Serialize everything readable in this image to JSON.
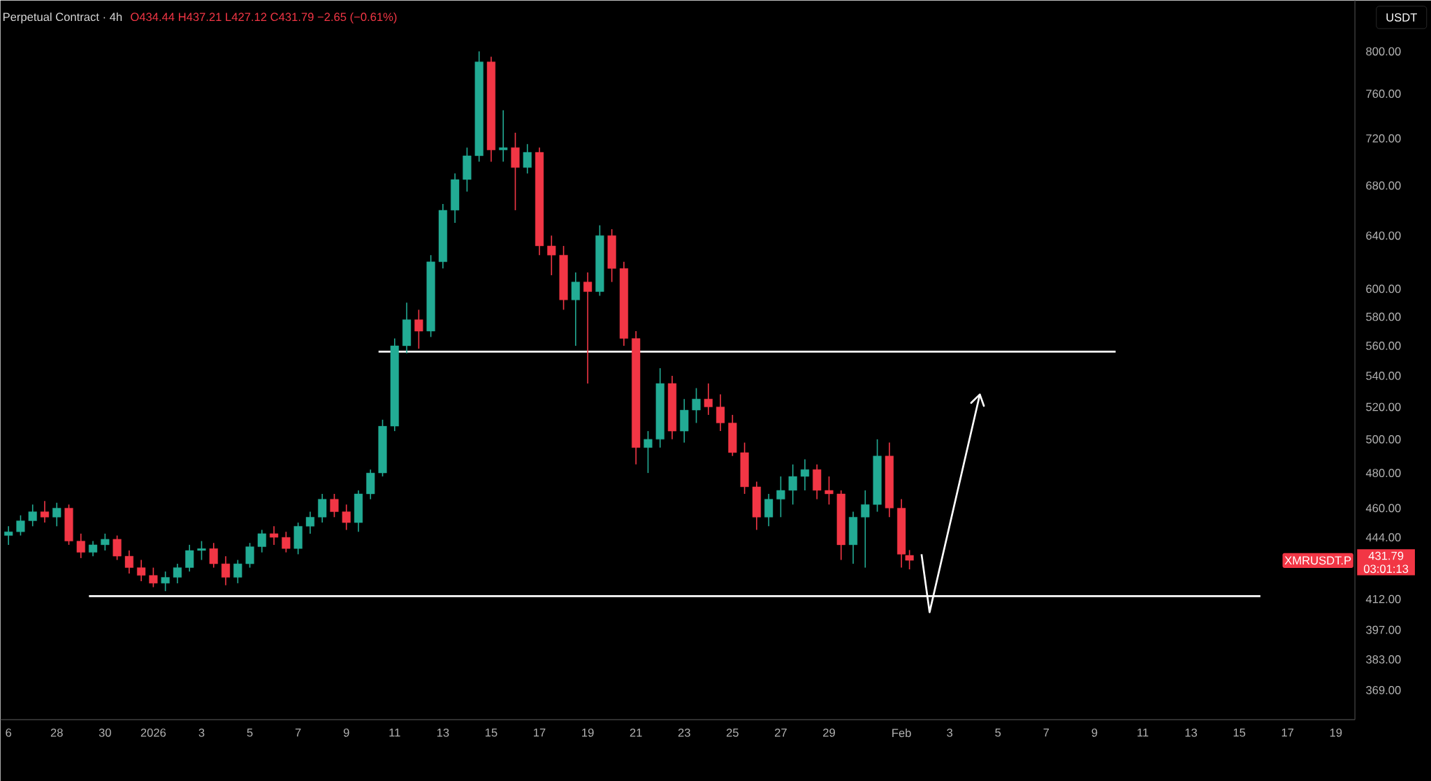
{
  "chart_data": {
    "type": "candlestick",
    "title": "Perpetual Contract · 4h",
    "subtitle": "O434.44 H437.21 L427.12 C431.79 −2.65 (−0.61%)",
    "annotations": [
      "USDT",
      "XMRUSDT.P",
      "431.79",
      "03:01:13"
    ],
    "log": "y",
    "grid": false,
    "xlim": [
      "2025-12-25T16:00",
      "2026-02-19T19:00"
    ],
    "ylim": [
      356,
      851
    ],
    "xticks": [
      {
        "value": "2025-12-26",
        "label": "6"
      },
      {
        "value": "2025-12-28",
        "label": "28"
      },
      {
        "value": "2025-12-30",
        "label": "30"
      },
      {
        "value": "2026-01-01",
        "label": "2026"
      },
      {
        "value": "2026-01-03",
        "label": "3"
      },
      {
        "value": "2026-01-05",
        "label": "5"
      },
      {
        "value": "2026-01-07",
        "label": "7"
      },
      {
        "value": "2026-01-09",
        "label": "9"
      },
      {
        "value": "2026-01-11",
        "label": "11"
      },
      {
        "value": "2026-01-13",
        "label": "13"
      },
      {
        "value": "2026-01-15",
        "label": "15"
      },
      {
        "value": "2026-01-17",
        "label": "17"
      },
      {
        "value": "2026-01-19",
        "label": "19"
      },
      {
        "value": "2026-01-21",
        "label": "21"
      },
      {
        "value": "2026-01-23",
        "label": "23"
      },
      {
        "value": "2026-01-25",
        "label": "25"
      },
      {
        "value": "2026-01-27",
        "label": "27"
      },
      {
        "value": "2026-01-29",
        "label": "29"
      },
      {
        "value": "2026-02-01",
        "label": "Feb"
      },
      {
        "value": "2026-02-03",
        "label": "3"
      },
      {
        "value": "2026-02-05",
        "label": "5"
      },
      {
        "value": "2026-02-07",
        "label": "7"
      },
      {
        "value": "2026-02-09",
        "label": "9"
      },
      {
        "value": "2026-02-11",
        "label": "11"
      },
      {
        "value": "2026-02-13",
        "label": "13"
      },
      {
        "value": "2026-02-15",
        "label": "15"
      },
      {
        "value": "2026-02-17",
        "label": "17"
      },
      {
        "value": "2026-02-19",
        "label": "19"
      }
    ],
    "yticks": [
      {
        "value": 369,
        "label": "369.00"
      },
      {
        "value": 383,
        "label": "383.00"
      },
      {
        "value": 397,
        "label": "397.00"
      },
      {
        "value": 412,
        "label": "412.00"
      },
      {
        "value": 444,
        "label": "444.00"
      },
      {
        "value": 460,
        "label": "460.00"
      },
      {
        "value": 480,
        "label": "480.00"
      },
      {
        "value": 500,
        "label": "500.00"
      },
      {
        "value": 520,
        "label": "520.00"
      },
      {
        "value": 540,
        "label": "540.00"
      },
      {
        "value": 560,
        "label": "560.00"
      },
      {
        "value": 580,
        "label": "580.00"
      },
      {
        "value": 600,
        "label": "600.00"
      },
      {
        "value": 640,
        "label": "640.00"
      },
      {
        "value": 680,
        "label": "680.00"
      },
      {
        "value": 720,
        "label": "720.00"
      },
      {
        "value": 760,
        "label": "760.00"
      },
      {
        "value": 800,
        "label": "800.00"
      }
    ],
    "x": [
      "2025-12-26T00:00",
      "2025-12-26T12:00",
      "2025-12-27T00:00",
      "2025-12-27T12:00",
      "2025-12-28T00:00",
      "2025-12-28T12:00",
      "2025-12-29T00:00",
      "2025-12-29T12:00",
      "2025-12-30T00:00",
      "2025-12-30T12:00",
      "2025-12-31T00:00",
      "2025-12-31T12:00",
      "2026-01-01T00:00",
      "2026-01-01T12:00",
      "2026-01-02T00:00",
      "2026-01-02T12:00",
      "2026-01-03T00:00",
      "2026-01-03T12:00",
      "2026-01-04T00:00",
      "2026-01-04T12:00",
      "2026-01-05T00:00",
      "2026-01-05T12:00",
      "2026-01-06T00:00",
      "2026-01-06T12:00",
      "2026-01-07T00:00",
      "2026-01-07T12:00",
      "2026-01-08T00:00",
      "2026-01-08T12:00",
      "2026-01-09T00:00",
      "2026-01-09T12:00",
      "2026-01-10T00:00",
      "2026-01-10T12:00",
      "2026-01-11T00:00",
      "2026-01-11T12:00",
      "2026-01-12T00:00",
      "2026-01-12T12:00",
      "2026-01-13T00:00",
      "2026-01-13T12:00",
      "2026-01-14T00:00",
      "2026-01-14T12:00",
      "2026-01-15T00:00",
      "2026-01-15T12:00",
      "2026-01-16T00:00",
      "2026-01-16T12:00",
      "2026-01-17T00:00",
      "2026-01-17T12:00",
      "2026-01-18T00:00",
      "2026-01-18T12:00",
      "2026-01-19T00:00",
      "2026-01-19T12:00",
      "2026-01-20T00:00",
      "2026-01-20T12:00",
      "2026-01-21T00:00",
      "2026-01-21T12:00",
      "2026-01-22T00:00",
      "2026-01-22T12:00",
      "2026-01-23T00:00",
      "2026-01-23T12:00",
      "2026-01-24T00:00",
      "2026-01-24T12:00",
      "2026-01-25T00:00",
      "2026-01-25T12:00",
      "2026-01-26T00:00",
      "2026-01-26T12:00",
      "2026-01-27T00:00",
      "2026-01-27T12:00",
      "2026-01-28T00:00",
      "2026-01-28T12:00",
      "2026-01-29T00:00",
      "2026-01-29T12:00",
      "2026-01-30T00:00",
      "2026-01-30T12:00",
      "2026-01-31T00:00",
      "2026-01-31T12:00",
      "2026-02-01T00:00",
      "2026-02-01T08:00"
    ],
    "ohlc": [
      [
        445,
        450,
        440,
        447
      ],
      [
        447,
        456,
        445,
        453
      ],
      [
        453,
        462,
        450,
        458
      ],
      [
        458,
        464,
        452,
        455
      ],
      [
        455,
        463,
        450,
        460
      ],
      [
        460,
        462,
        440,
        442
      ],
      [
        442,
        446,
        433,
        436
      ],
      [
        436,
        442,
        434,
        440
      ],
      [
        440,
        446,
        437,
        443
      ],
      [
        443,
        445,
        432,
        434
      ],
      [
        434,
        437,
        425,
        428
      ],
      [
        428,
        432,
        421,
        424
      ],
      [
        424,
        428,
        418,
        420
      ],
      [
        420,
        426,
        416,
        423
      ],
      [
        423,
        430,
        420,
        428
      ],
      [
        428,
        440,
        426,
        437
      ],
      [
        437,
        442,
        432,
        438
      ],
      [
        438,
        441,
        428,
        430
      ],
      [
        430,
        434,
        419,
        423
      ],
      [
        423,
        432,
        420,
        430
      ],
      [
        430,
        441,
        428,
        439
      ],
      [
        439,
        448,
        436,
        446
      ],
      [
        446,
        450,
        440,
        444
      ],
      [
        444,
        447,
        436,
        438
      ],
      [
        438,
        452,
        435,
        450
      ],
      [
        450,
        458,
        446,
        455
      ],
      [
        455,
        468,
        452,
        465
      ],
      [
        465,
        468,
        455,
        458
      ],
      [
        458,
        462,
        448,
        452
      ],
      [
        452,
        470,
        447,
        468
      ],
      [
        468,
        482,
        465,
        480
      ],
      [
        480,
        512,
        478,
        508
      ],
      [
        508,
        565,
        505,
        560
      ],
      [
        560,
        590,
        555,
        578
      ],
      [
        578,
        585,
        558,
        570
      ],
      [
        570,
        625,
        566,
        620
      ],
      [
        620,
        665,
        615,
        660
      ],
      [
        660,
        690,
        650,
        685
      ],
      [
        685,
        712,
        675,
        705
      ],
      [
        705,
        800,
        700,
        790
      ],
      [
        790,
        795,
        700,
        710
      ],
      [
        710,
        745,
        700,
        712
      ],
      [
        712,
        725,
        660,
        695
      ],
      [
        695,
        715,
        690,
        708
      ],
      [
        708,
        712,
        625,
        632
      ],
      [
        632,
        640,
        610,
        625
      ],
      [
        625,
        632,
        585,
        592
      ],
      [
        592,
        612,
        560,
        605
      ],
      [
        605,
        612,
        535,
        598
      ],
      [
        598,
        648,
        595,
        640
      ],
      [
        640,
        645,
        605,
        615
      ],
      [
        615,
        620,
        560,
        565
      ],
      [
        565,
        570,
        485,
        495
      ],
      [
        495,
        505,
        480,
        500
      ],
      [
        500,
        545,
        495,
        535
      ],
      [
        535,
        540,
        500,
        505
      ],
      [
        505,
        525,
        498,
        518
      ],
      [
        518,
        532,
        510,
        525
      ],
      [
        525,
        535,
        515,
        520
      ],
      [
        520,
        528,
        505,
        510
      ],
      [
        510,
        515,
        490,
        492
      ],
      [
        492,
        498,
        468,
        472
      ],
      [
        472,
        475,
        448,
        455
      ],
      [
        455,
        468,
        450,
        465
      ],
      [
        465,
        478,
        455,
        470
      ],
      [
        470,
        485,
        462,
        478
      ],
      [
        478,
        488,
        470,
        482
      ],
      [
        482,
        485,
        465,
        470
      ],
      [
        470,
        478,
        462,
        468
      ],
      [
        468,
        470,
        432,
        440
      ],
      [
        440,
        458,
        430,
        455
      ],
      [
        455,
        470,
        428,
        462
      ],
      [
        462,
        500,
        458,
        490
      ],
      [
        490,
        498,
        455,
        460
      ],
      [
        460,
        465,
        428,
        435
      ],
      [
        434.44,
        437.21,
        427.12,
        431.79
      ]
    ],
    "colors": [
      "#22ab94",
      "#22ab94",
      "#22ab94",
      "#f23645",
      "#22ab94",
      "#f23645",
      "#f23645",
      "#22ab94",
      "#22ab94",
      "#f23645",
      "#f23645",
      "#f23645",
      "#f23645",
      "#22ab94",
      "#22ab94",
      "#22ab94",
      "#22ab94",
      "#f23645",
      "#f23645",
      "#22ab94",
      "#22ab94",
      "#22ab94",
      "#f23645",
      "#f23645",
      "#22ab94",
      "#22ab94",
      "#22ab94",
      "#f23645",
      "#f23645",
      "#22ab94",
      "#22ab94",
      "#22ab94",
      "#22ab94",
      "#22ab94",
      "#f23645",
      "#22ab94",
      "#22ab94",
      "#22ab94",
      "#22ab94",
      "#22ab94",
      "#f23645",
      "#22ab94",
      "#f23645",
      "#22ab94",
      "#f23645",
      "#f23645",
      "#f23645",
      "#22ab94",
      "#f23645",
      "#22ab94",
      "#f23645",
      "#f23645",
      "#f23645",
      "#22ab94",
      "#22ab94",
      "#f23645",
      "#22ab94",
      "#22ab94",
      "#f23645",
      "#f23645",
      "#f23645",
      "#f23645",
      "#f23645",
      "#22ab94",
      "#22ab94",
      "#22ab94",
      "#22ab94",
      "#f23645",
      "#f23645",
      "#f23645",
      "#22ab94",
      "#22ab94",
      "#22ab94",
      "#f23645",
      "#f23645",
      "#f23645"
    ],
    "series": [
      {
        "type": "line",
        "color": "#ffffff",
        "x": [
          "2026-01-10T08:00",
          "2026-02-09T21:00"
        ],
        "values": [
          556,
          556
        ]
      },
      {
        "type": "line",
        "color": "#ffffff",
        "x": [
          "2025-12-29T08:00",
          "2026-02-15T21:00"
        ],
        "values": [
          413.5,
          413.5
        ]
      },
      {
        "type": "line",
        "color": "#ffffff",
        "x": [
          "2026-02-01T20:00",
          "2026-02-02T04:00",
          "2026-02-04T06:00"
        ],
        "values": [
          435,
          405.5,
          528
        ]
      }
    ]
  }
}
